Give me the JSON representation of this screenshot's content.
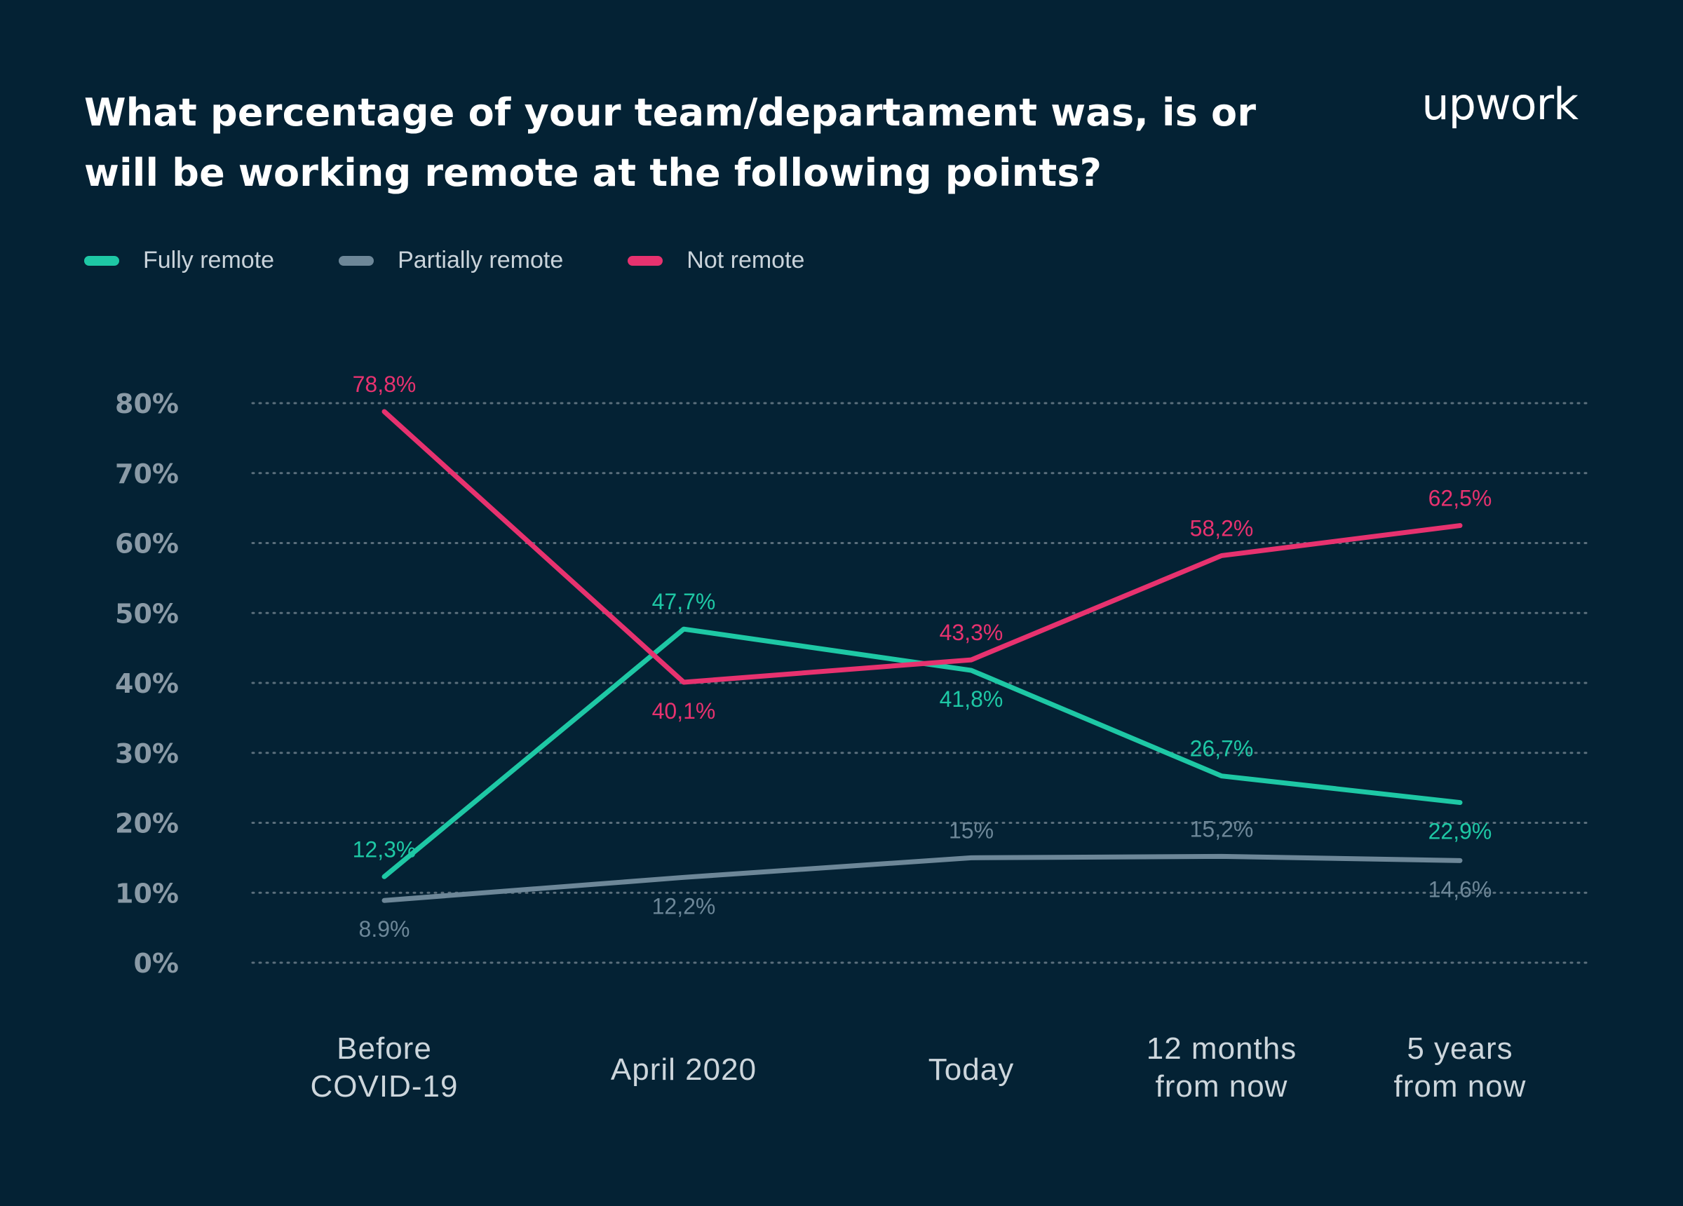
{
  "title": "What percentage of your team/departament was, is or will be working remote at the following points?",
  "brand": "upwork",
  "colors": {
    "background": "#042234",
    "fully_remote": "#1ec8a5",
    "partially_remote": "#6d8798",
    "not_remote": "#e7326f",
    "grid": "#5b6f7c",
    "axis_text": "#8a9aa6"
  },
  "chart_data": {
    "type": "line",
    "categories": [
      [
        "Before",
        "COVID-19"
      ],
      [
        "April 2020"
      ],
      [
        "Today"
      ],
      [
        "12 months",
        "from now"
      ],
      [
        "5 years",
        "from now"
      ]
    ],
    "y_ticks": [
      "0%",
      "10%",
      "20%",
      "30%",
      "40%",
      "50%",
      "60%",
      "70%",
      "80%"
    ],
    "ylim": [
      0,
      80
    ],
    "grid": true,
    "legend_position": "top-left",
    "series": [
      {
        "name": "Fully remote",
        "color": "#1ec8a5",
        "values": [
          12.3,
          47.7,
          41.8,
          26.7,
          22.9
        ],
        "labels": [
          "12,3%",
          "47,7%",
          "41,8%",
          "26,7%",
          "22,9%"
        ],
        "label_side": [
          "above",
          "above",
          "below",
          "above",
          "below"
        ]
      },
      {
        "name": "Partially remote",
        "color": "#6d8798",
        "values": [
          8.9,
          12.2,
          15,
          15.2,
          14.6
        ],
        "labels": [
          "8.9%",
          "12,2%",
          "15%",
          "15,2%",
          "14,6%"
        ],
        "label_side": [
          "below",
          "below",
          "above",
          "above",
          "below"
        ]
      },
      {
        "name": "Not remote",
        "color": "#e7326f",
        "values": [
          78.8,
          40.1,
          43.3,
          58.2,
          62.5
        ],
        "labels": [
          "78,8%",
          "40,1%",
          "43,3%",
          "58,2%",
          "62,5%"
        ],
        "label_side": [
          "above",
          "below",
          "above",
          "above",
          "above"
        ]
      }
    ]
  }
}
